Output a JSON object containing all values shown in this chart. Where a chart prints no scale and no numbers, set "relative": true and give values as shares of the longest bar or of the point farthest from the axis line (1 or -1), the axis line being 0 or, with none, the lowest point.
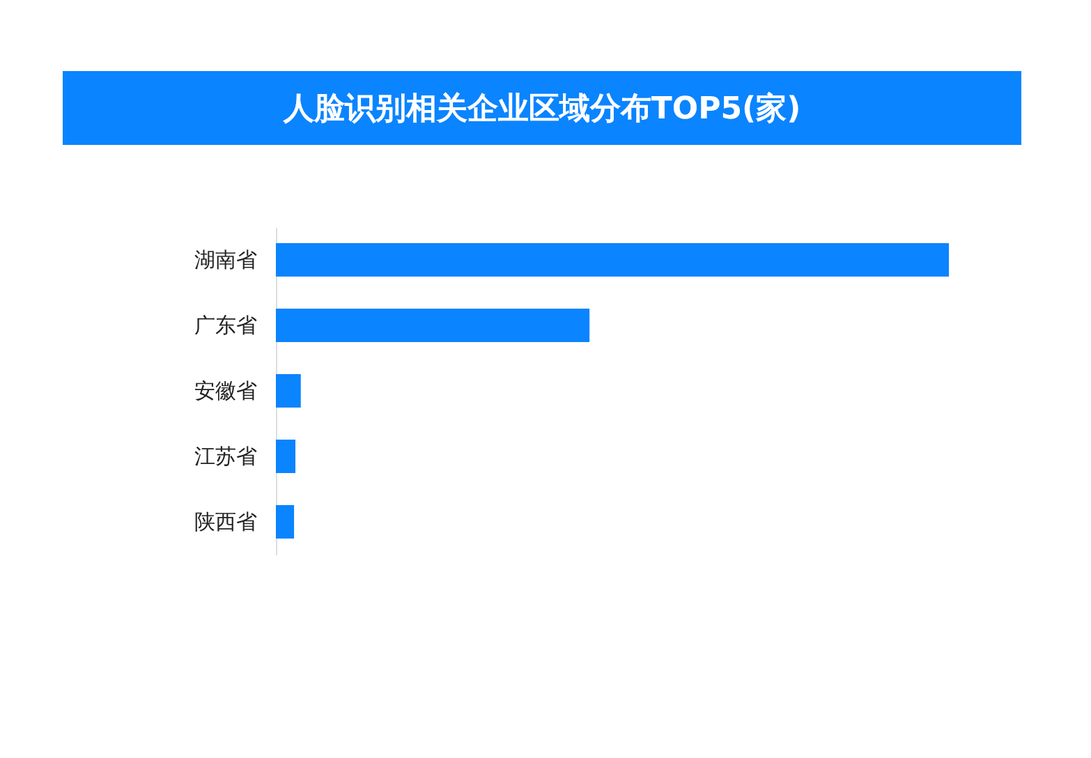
{
  "chart_data": {
    "type": "bar",
    "title": "人脸识别相关企业区域分布TOP5(家)",
    "orientation": "horizontal",
    "relative": true,
    "categories": [
      "湖南省",
      "广东省",
      "安徽省",
      "江苏省",
      "陕西省"
    ],
    "values": [
      1,
      0.466,
      0.037,
      0.029,
      0.027
    ],
    "color": "#0a84ff"
  }
}
